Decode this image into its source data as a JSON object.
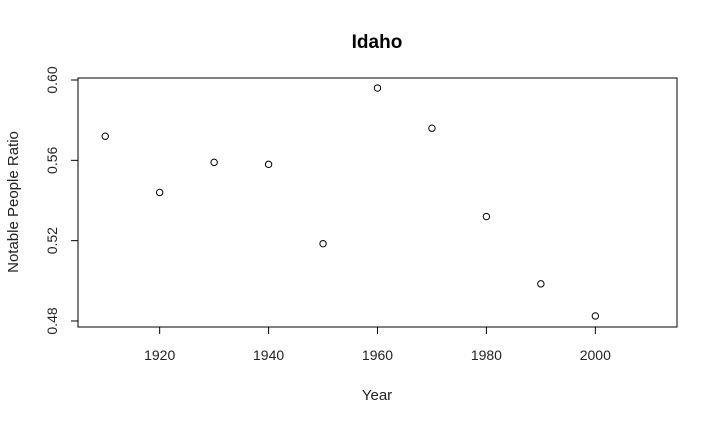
{
  "chart_data": {
    "type": "scatter",
    "title": "Idaho",
    "xlabel": "Year",
    "ylabel": "Notable People Ratio",
    "xlim": [
      1905,
      2015
    ],
    "ylim": [
      0.477,
      0.601
    ],
    "x_ticks": [
      1920,
      1940,
      1960,
      1980,
      2000
    ],
    "y_ticks": [
      0.48,
      0.52,
      0.56,
      0.6
    ],
    "y_tick_labels": [
      "0.48",
      "0.52",
      "0.56",
      "0.60"
    ],
    "grid": false,
    "legend": "none",
    "marker": "open-circle",
    "points": [
      {
        "x": 1910,
        "y": 0.572
      },
      {
        "x": 1920,
        "y": 0.544
      },
      {
        "x": 1930,
        "y": 0.559
      },
      {
        "x": 1940,
        "y": 0.558
      },
      {
        "x": 1950,
        "y": 0.5185
      },
      {
        "x": 1960,
        "y": 0.596
      },
      {
        "x": 1970,
        "y": 0.576
      },
      {
        "x": 1980,
        "y": 0.532
      },
      {
        "x": 1990,
        "y": 0.4985
      },
      {
        "x": 2000,
        "y": 0.4825
      }
    ]
  }
}
